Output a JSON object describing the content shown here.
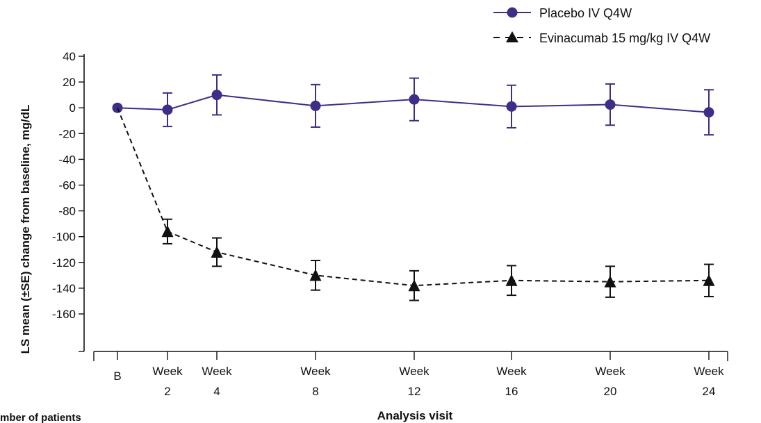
{
  "chart_data": {
    "type": "line",
    "xlabel": "Analysis visit",
    "ylabel": "LS mean (±SE) change from baseline, mg/dL",
    "ylim": [
      -190,
      40
    ],
    "yticks": [
      40,
      20,
      0,
      -20,
      -40,
      -60,
      -80,
      -100,
      -120,
      -140,
      -160
    ],
    "x": [
      0,
      2,
      4,
      8,
      12,
      16,
      20,
      24
    ],
    "xticklabels": [
      {
        "line1": "B",
        "line2": ""
      },
      {
        "line1": "Week",
        "line2": "2"
      },
      {
        "line1": "Week",
        "line2": "4"
      },
      {
        "line1": "Week",
        "line2": "8"
      },
      {
        "line1": "Week",
        "line2": "12"
      },
      {
        "line1": "Week",
        "line2": "16"
      },
      {
        "line1": "Week",
        "line2": "20"
      },
      {
        "line1": "Week",
        "line2": "24"
      }
    ],
    "legend_position": "top-right",
    "series": [
      {
        "name": "Placebo IV Q4W",
        "color": "#3b2f87",
        "marker": "circle",
        "line_style": "solid",
        "values": [
          0,
          -1.5,
          10,
          1.5,
          6.5,
          1,
          2.5,
          -3.5
        ],
        "se": [
          0,
          13,
          15.5,
          16.5,
          16.5,
          16.5,
          16,
          17.5
        ]
      },
      {
        "name": "Evinacumab 15 mg/kg IV Q4W",
        "color": "#111111",
        "marker": "triangle",
        "line_style": "dashed",
        "values": [
          0,
          -96,
          -112,
          -130,
          -138,
          -134,
          -135,
          -134
        ],
        "se": [
          0,
          9.5,
          11,
          11.5,
          11.5,
          11.5,
          12,
          12.5
        ]
      }
    ],
    "footer_fragment": "mber of patients"
  }
}
